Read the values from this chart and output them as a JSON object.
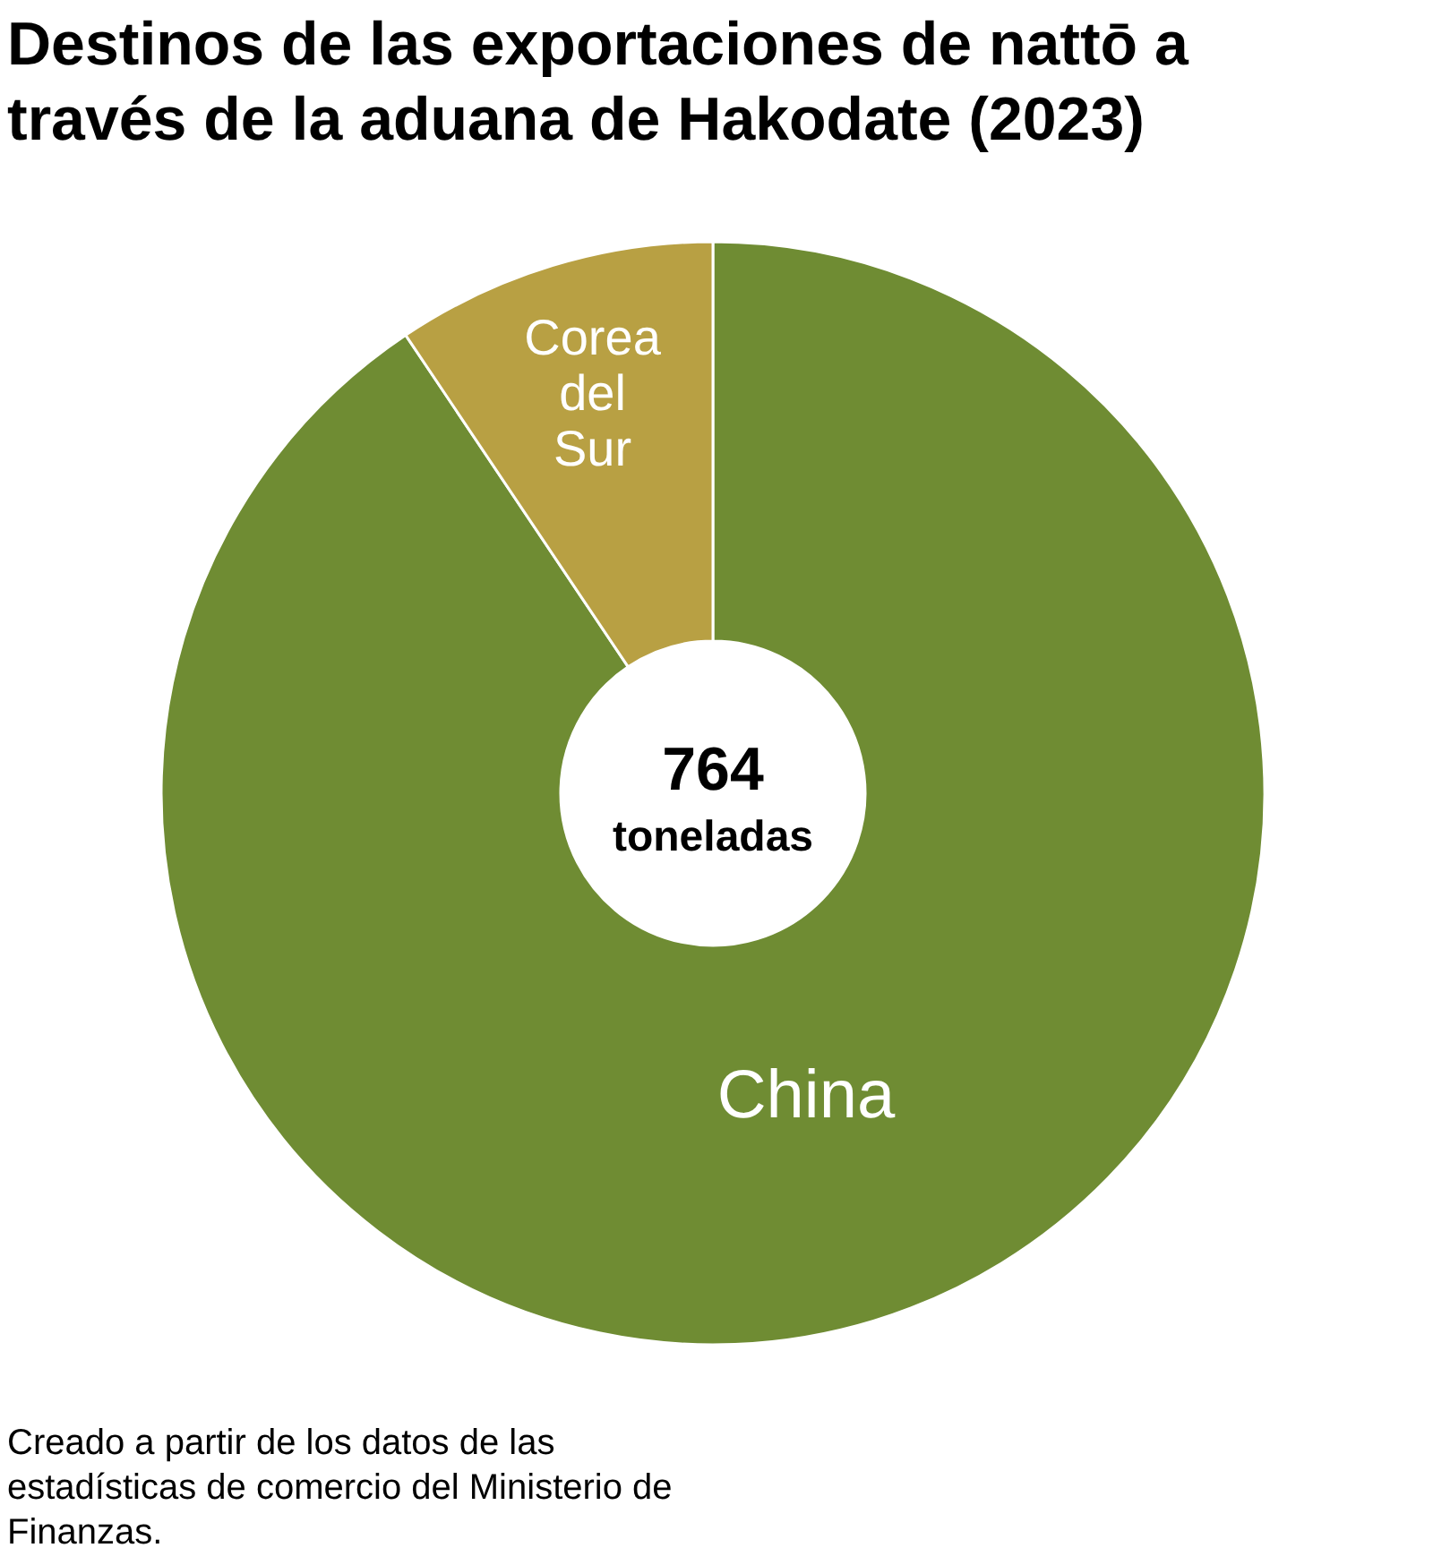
{
  "chart_data": {
    "type": "donut",
    "title": "Destinos de las exportaciones de nattō a través de la aduana de Hakodate (2023)",
    "categories": [
      "China",
      "Corea del Sur"
    ],
    "values": [
      90.6,
      9.4
    ],
    "colors": [
      "#6f8c33",
      "#b8a043"
    ],
    "annotations": [
      "764 toneladas",
      "Creado a partir de los datos de las estadísticas de comercio del Ministerio de Finanzas."
    ]
  }
}
